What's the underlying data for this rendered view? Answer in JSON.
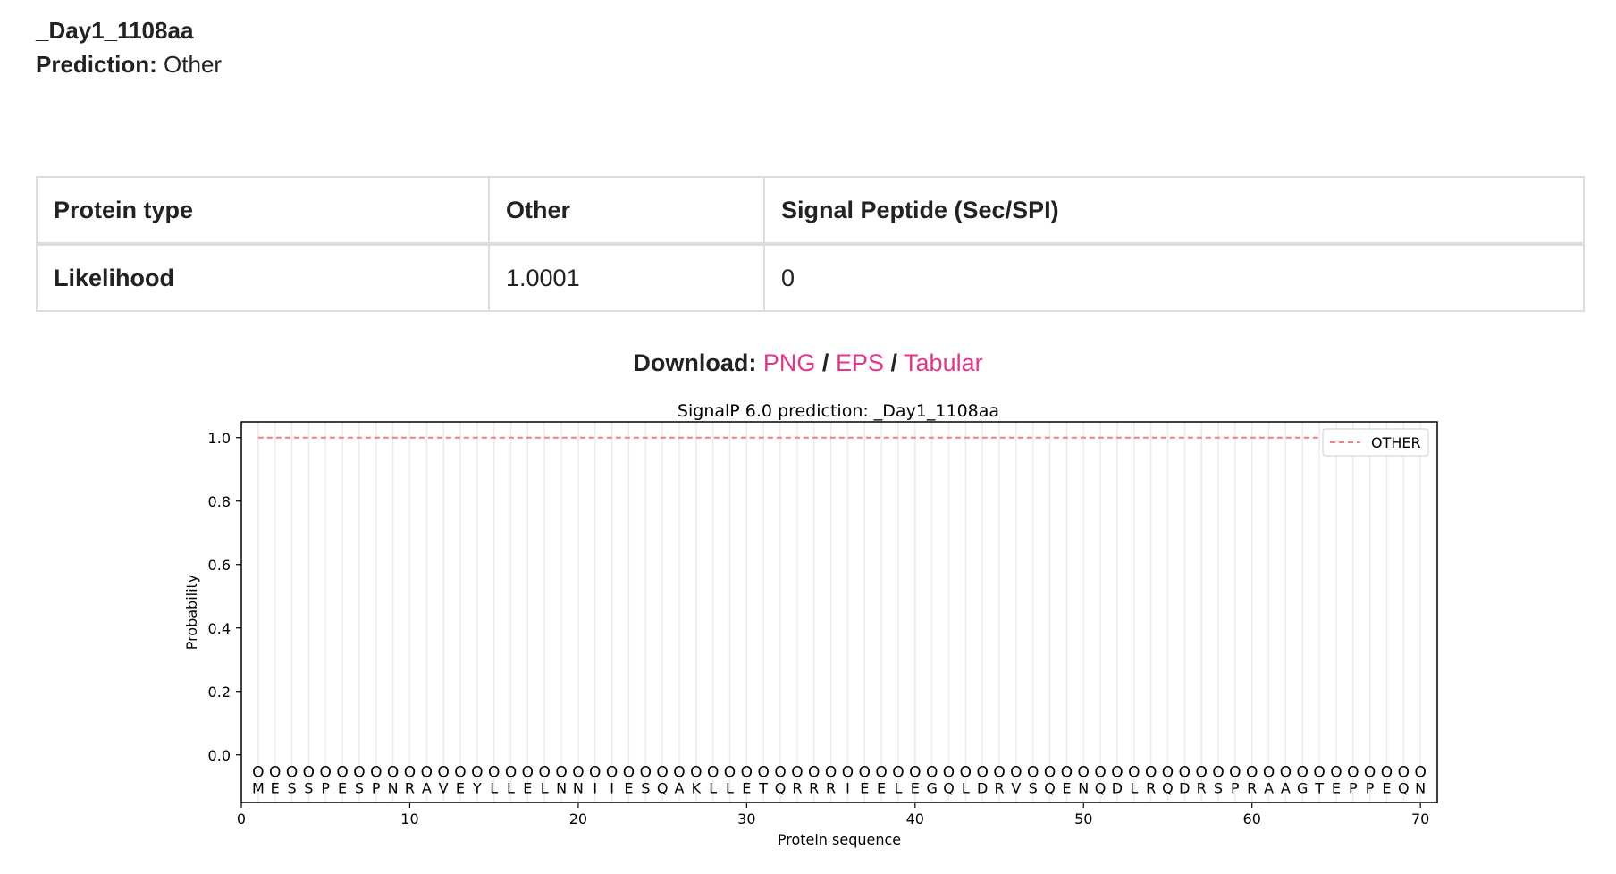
{
  "header": {
    "sequence_name": "_Day1_1108aa",
    "prediction_label": "Prediction:",
    "prediction_value": "Other"
  },
  "summary_table": {
    "rows": [
      [
        "Protein type",
        "Other",
        "Signal Peptide (Sec/SPI)"
      ],
      [
        "Likelihood",
        "1.0001",
        "0"
      ]
    ]
  },
  "download": {
    "label": "Download:",
    "separator": "/",
    "links": [
      "PNG",
      "EPS",
      "Tabular"
    ],
    "link_color": "#e8338a"
  },
  "chart_data": {
    "type": "line",
    "title": "SignalP 6.0 prediction: _Day1_1108aa",
    "xlabel": "Protein sequence",
    "ylabel": "Probability",
    "xlim": [
      0,
      71
    ],
    "ylim": [
      -0.15,
      1.05
    ],
    "x_ticks": [
      0,
      10,
      20,
      30,
      40,
      50,
      60,
      70
    ],
    "y_ticks": [
      "0.0",
      "0.2",
      "0.4",
      "0.6",
      "0.8",
      "1.0"
    ],
    "vertical_gridlines": true,
    "legend_placement": "top-right",
    "sequence": "MESSPESPNRAVEYLLELNNIIESQAKLLETQRRRIEELEGQLDRVSQENQDLRQDRSPRAAGTEPPEQN",
    "region_marker": "O",
    "series": [
      {
        "name": "OTHER",
        "style": "dashed",
        "color": "#f08080",
        "x_range": [
          1,
          64
        ],
        "value": 1.0
      }
    ]
  }
}
